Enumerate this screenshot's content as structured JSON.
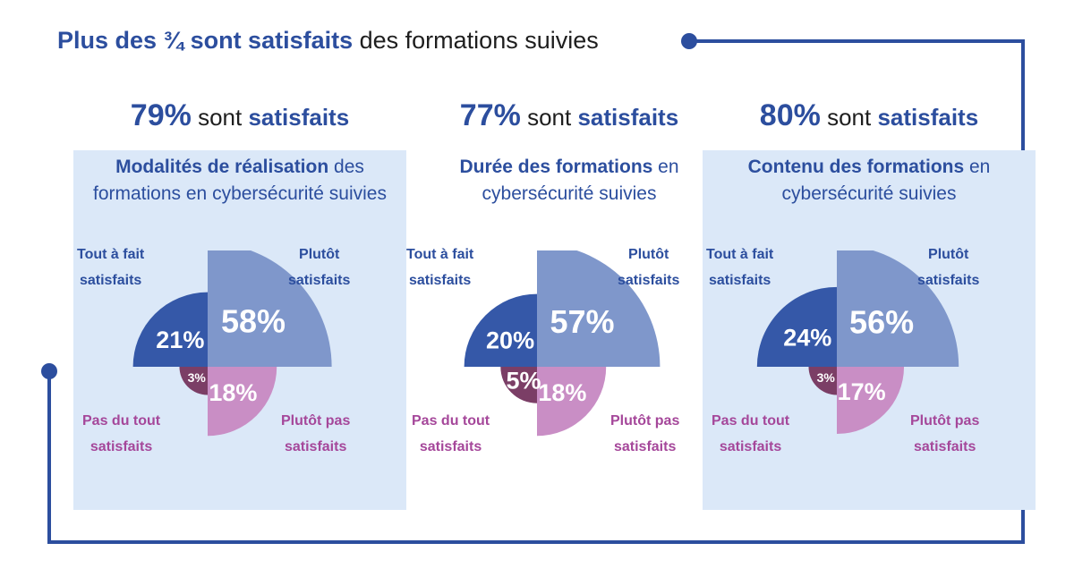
{
  "title": {
    "part1": "Plus des ",
    "part2": "¾ sont satisfaits",
    "part3": " des formations suivies"
  },
  "colors": {
    "tout_a_fait_satisfaits": "#3558a8",
    "plutot_satisfaits": "#7f97cb",
    "plutot_pas_satisfaits": "#c98ec5",
    "pas_du_tout_satisfaits": "#7b3e66",
    "frame": "#2c4e9e",
    "panel_background": "#dbe8f8"
  },
  "chart_data": [
    {
      "type": "pie",
      "headline_value": "79%",
      "headline_text": " sont ",
      "headline_keyword": "satisfaits",
      "subtitle_bold": "Modalités de réalisation",
      "subtitle_rest": " des formations en cybersécurité suivies",
      "categories": [
        "Tout à fait satisfaits",
        "Plutôt satisfaits",
        "Plutôt pas satisfaits",
        "Pas du tout satisfaits"
      ],
      "values": [
        21,
        58,
        18,
        3
      ],
      "value_labels": [
        "21%",
        "58%",
        "18%",
        "3%"
      ],
      "category_labels": [
        "Tout à fait\nsatisfaits",
        "Plutôt\nsatisfaits",
        "Plutôt pas\nsatisfaits",
        "Pas du tout\nsatisfaits"
      ]
    },
    {
      "type": "pie",
      "headline_value": "77%",
      "headline_text": " sont ",
      "headline_keyword": "satisfaits",
      "subtitle_bold": "Durée des formations",
      "subtitle_rest": " en cybersécurité suivies",
      "categories": [
        "Tout à fait satisfaits",
        "Plutôt satisfaits",
        "Plutôt pas satisfaits",
        "Pas du tout satisfaits"
      ],
      "values": [
        20,
        57,
        18,
        5
      ],
      "value_labels": [
        "20%",
        "57%",
        "18%",
        "5%"
      ],
      "category_labels": [
        "Tout à fait\nsatisfaits",
        "Plutôt\nsatisfaits",
        "Plutôt pas\nsatisfaits",
        "Pas du tout\nsatisfaits"
      ]
    },
    {
      "type": "pie",
      "headline_value": "80%",
      "headline_text": " sont ",
      "headline_keyword": "satisfaits",
      "subtitle_bold": "Contenu des formations",
      "subtitle_rest": " en cybersécurité suivies",
      "categories": [
        "Tout à fait satisfaits",
        "Plutôt satisfaits",
        "Plutôt pas satisfaits",
        "Pas du tout satisfaits"
      ],
      "values": [
        24,
        56,
        17,
        3
      ],
      "value_labels": [
        "24%",
        "56%",
        "17%",
        "3%"
      ],
      "category_labels": [
        "Tout à fait\nsatisfaits",
        "Plutôt\nsatisfaits",
        "Plutôt pas\nsatisfaits",
        "Pas du tout\nsatisfaits"
      ]
    }
  ]
}
